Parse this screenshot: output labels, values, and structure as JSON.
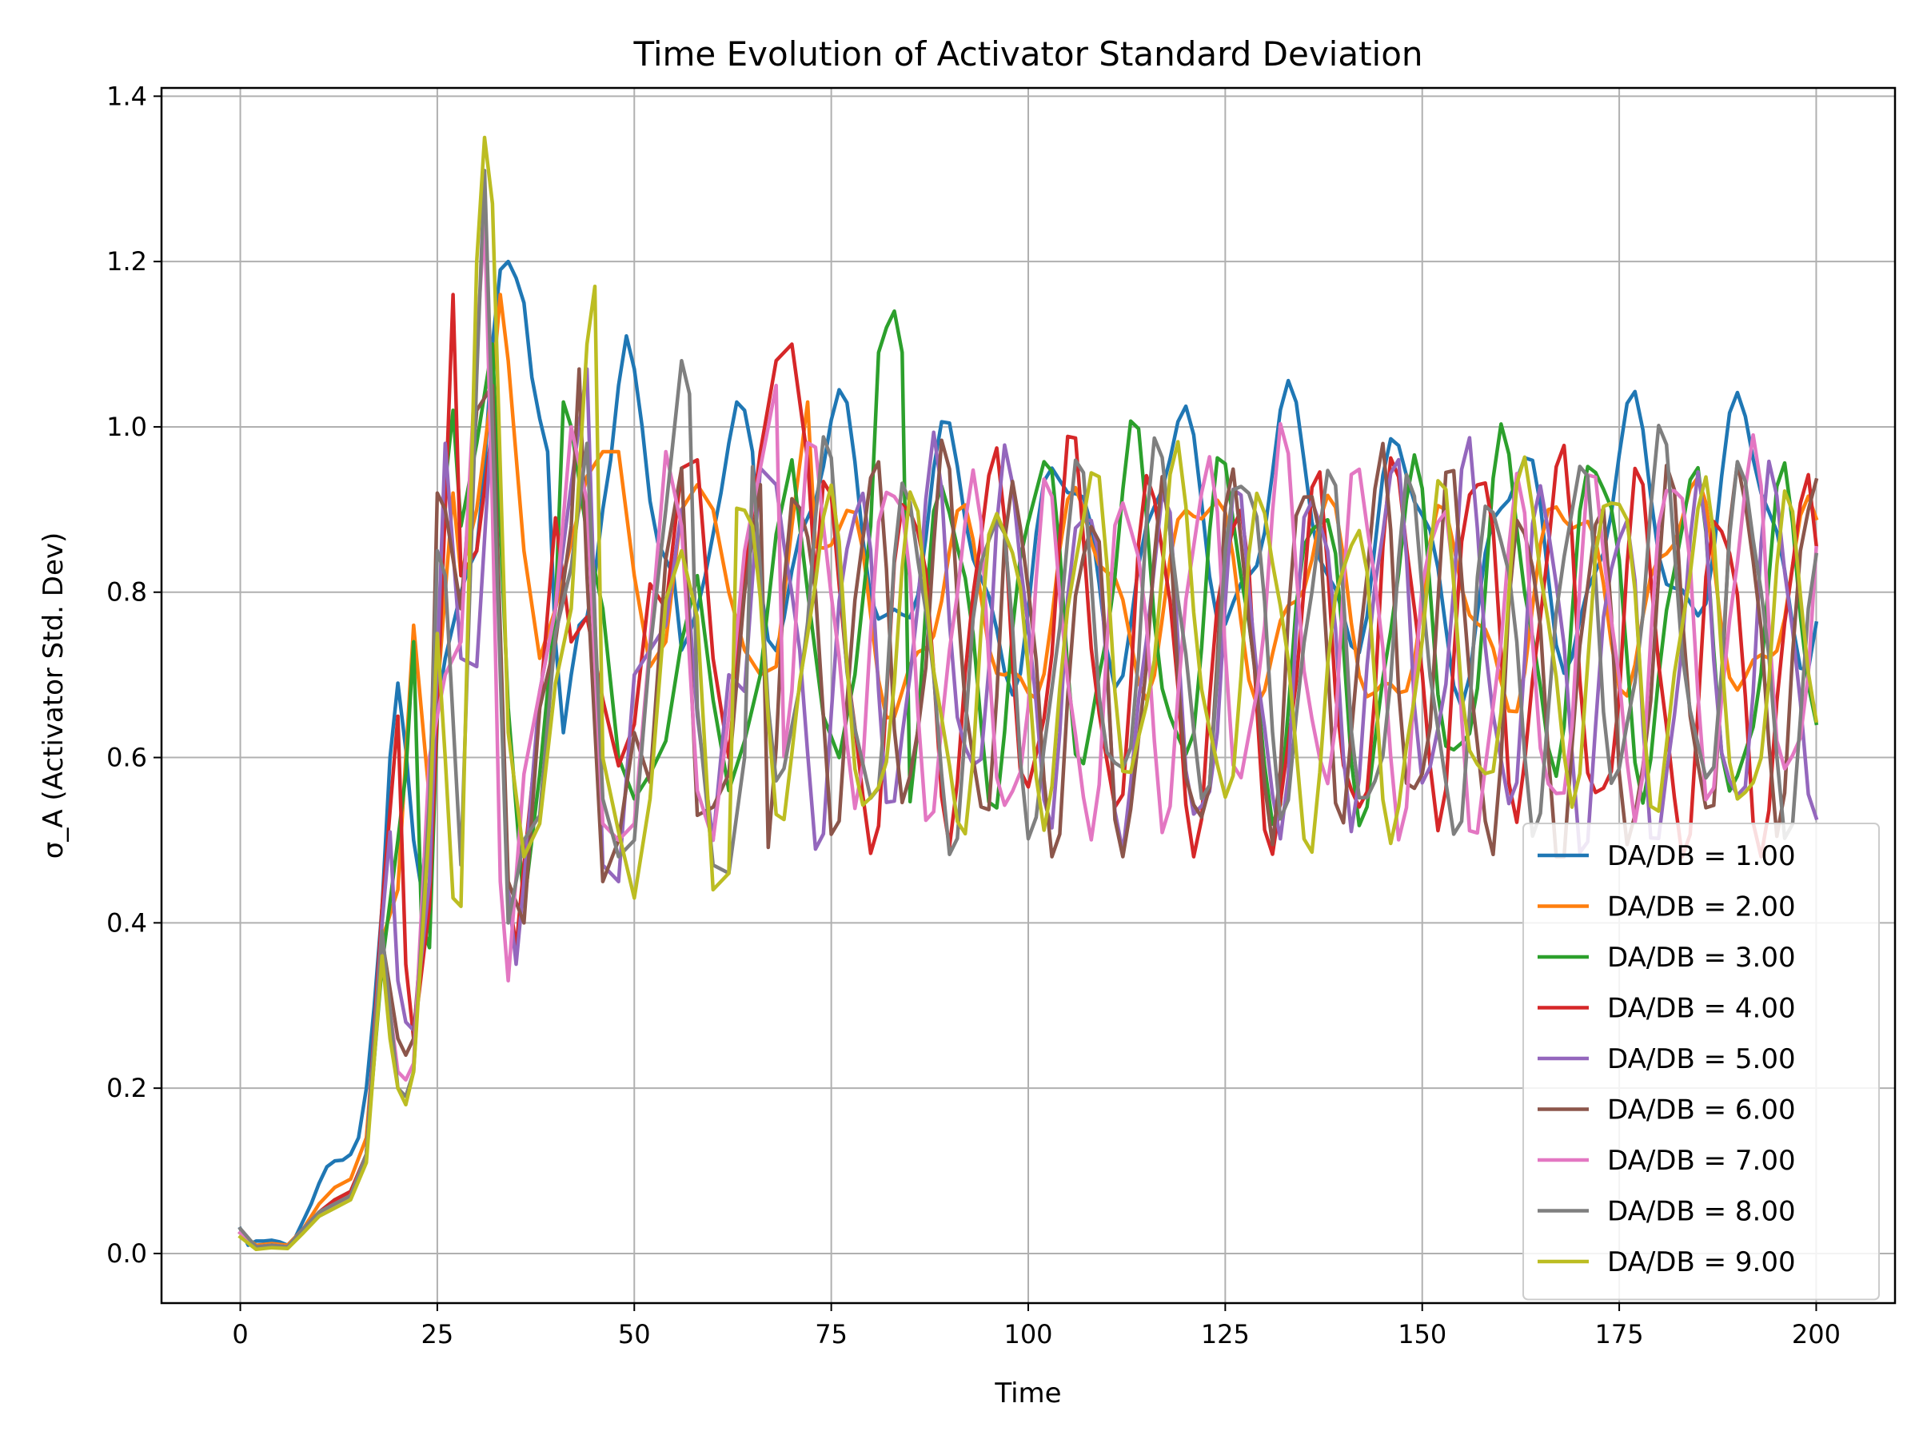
{
  "chart_data": {
    "type": "line",
    "title": "Time Evolution of Activator Standard Deviation",
    "xlabel": "Time",
    "ylabel": "σ_A (Activator Std. Dev)",
    "xlim": [
      -10,
      210
    ],
    "ylim": [
      -0.06,
      1.41
    ],
    "xticks": [
      "0",
      "25",
      "50",
      "75",
      "100",
      "125",
      "150",
      "175",
      "200"
    ],
    "yticks": [
      "0.0",
      "0.2",
      "0.4",
      "0.6",
      "0.8",
      "1.0",
      "1.2",
      "1.4"
    ],
    "grid": true,
    "legend_position": "lower-right",
    "series": [
      {
        "name": "DA/DB = 1.00",
        "color": "#1f77b4",
        "phase": 0.0,
        "period": 14.4,
        "amp": 0.13,
        "base": 0.86,
        "x": [
          0,
          1,
          2,
          3,
          4,
          5,
          6,
          7,
          8,
          9,
          10,
          11,
          12,
          13,
          14,
          15,
          16,
          17,
          18,
          19,
          20,
          21,
          22,
          23,
          24,
          25,
          26,
          27,
          28,
          29,
          30,
          31,
          32,
          33,
          34,
          35,
          36,
          37,
          38,
          39,
          40,
          41,
          42,
          43,
          44,
          45,
          46,
          47,
          48,
          49,
          50,
          51,
          52,
          53,
          54,
          55,
          56,
          57,
          58,
          59,
          60,
          61,
          62,
          63,
          64,
          65
        ],
        "y": [
          0.03,
          0.01,
          0.015,
          0.015,
          0.016,
          0.014,
          0.01,
          0.02,
          0.04,
          0.06,
          0.085,
          0.105,
          0.112,
          0.113,
          0.12,
          0.14,
          0.2,
          0.3,
          0.42,
          0.6,
          0.69,
          0.61,
          0.5,
          0.44,
          0.55,
          0.66,
          0.72,
          0.76,
          0.8,
          0.83,
          0.85,
          0.95,
          1.1,
          1.19,
          1.2,
          1.18,
          1.15,
          1.06,
          1.01,
          0.97,
          0.74,
          0.63,
          0.7,
          0.76,
          0.77,
          0.82,
          0.9,
          0.96,
          1.05,
          1.11,
          1.07,
          1.0,
          0.91,
          0.86,
          0.84,
          0.82,
          0.73,
          0.75,
          0.78,
          0.82,
          0.87,
          0.92,
          0.98,
          1.03,
          1.02,
          0.97
        ]
      },
      {
        "name": "DA/DB = 2.00",
        "color": "#ff7f0e",
        "phase": 2.0,
        "period": 15.4,
        "amp": 0.11,
        "base": 0.79,
        "x": [
          0,
          2,
          4,
          6,
          8,
          10,
          12,
          14,
          16,
          18,
          20,
          21,
          22,
          24,
          26,
          27,
          28,
          30,
          32,
          33,
          34,
          36,
          38,
          40,
          42,
          44,
          46,
          48,
          50,
          52,
          54,
          56,
          58,
          60,
          62,
          64,
          66,
          68,
          70,
          72
        ],
        "y": [
          0.025,
          0.01,
          0.012,
          0.01,
          0.03,
          0.06,
          0.08,
          0.09,
          0.14,
          0.38,
          0.44,
          0.6,
          0.76,
          0.55,
          0.8,
          0.92,
          0.82,
          0.9,
          1.05,
          1.16,
          1.08,
          0.85,
          0.72,
          0.78,
          0.86,
          0.94,
          0.97,
          0.97,
          0.82,
          0.71,
          0.74,
          0.9,
          0.93,
          0.9,
          0.8,
          0.73,
          0.7,
          0.71,
          0.88,
          1.03
        ]
      },
      {
        "name": "DA/DB = 3.00",
        "color": "#2ca02c",
        "phase": 4.1,
        "period": 11.8,
        "amp": 0.19,
        "base": 0.76,
        "x": [
          0,
          2,
          4,
          6,
          8,
          10,
          12,
          14,
          16,
          18,
          20,
          21,
          22,
          23,
          24,
          26,
          27,
          28,
          30,
          32,
          34,
          36,
          38,
          40,
          41,
          42,
          44,
          46,
          48,
          50,
          52,
          54,
          56,
          58,
          60,
          62,
          64,
          66,
          68,
          70,
          72,
          74,
          76,
          78,
          80,
          81,
          82,
          83,
          84
        ],
        "y": [
          0.025,
          0.008,
          0.01,
          0.008,
          0.03,
          0.05,
          0.065,
          0.075,
          0.12,
          0.35,
          0.5,
          0.58,
          0.74,
          0.4,
          0.37,
          0.93,
          1.02,
          0.88,
          0.98,
          1.1,
          0.66,
          0.42,
          0.58,
          0.78,
          1.03,
          1.0,
          0.87,
          0.78,
          0.6,
          0.55,
          0.58,
          0.62,
          0.74,
          0.82,
          0.67,
          0.56,
          0.62,
          0.7,
          0.87,
          0.96,
          0.8,
          0.65,
          0.6,
          0.7,
          0.88,
          1.09,
          1.12,
          1.14,
          1.09
        ]
      },
      {
        "name": "DA/DB = 4.00",
        "color": "#d62728",
        "phase": 6.3,
        "period": 10.3,
        "amp": 0.21,
        "base": 0.73,
        "x": [
          0,
          2,
          4,
          6,
          8,
          10,
          12,
          14,
          16,
          18,
          20,
          21,
          22,
          24,
          26,
          27,
          28,
          30,
          32,
          34,
          35,
          36,
          38,
          40,
          42,
          44,
          46,
          48,
          50,
          52,
          54,
          56,
          58,
          60,
          62,
          64,
          66,
          68,
          70,
          72
        ],
        "y": [
          0.025,
          0.008,
          0.01,
          0.008,
          0.03,
          0.05,
          0.065,
          0.075,
          0.12,
          0.42,
          0.65,
          0.35,
          0.26,
          0.42,
          0.9,
          1.16,
          0.82,
          0.85,
          1.0,
          0.44,
          0.37,
          0.47,
          0.66,
          0.89,
          0.74,
          0.77,
          0.67,
          0.59,
          0.64,
          0.81,
          0.78,
          0.95,
          0.96,
          0.72,
          0.6,
          0.82,
          0.97,
          1.08,
          1.1,
          0.96
        ]
      },
      {
        "name": "DA/DB = 5.00",
        "color": "#9467bd",
        "phase": 1.2,
        "period": 9.7,
        "amp": 0.2,
        "base": 0.73,
        "x": [
          0,
          2,
          4,
          6,
          8,
          10,
          12,
          14,
          16,
          18,
          19,
          20,
          21,
          22,
          24,
          26,
          28,
          30,
          32,
          34,
          35,
          36,
          38,
          40,
          42,
          44,
          46,
          48,
          50,
          52,
          54,
          56,
          58,
          60,
          62,
          64,
          66,
          68
        ],
        "y": [
          0.025,
          0.008,
          0.01,
          0.008,
          0.03,
          0.05,
          0.06,
          0.07,
          0.12,
          0.4,
          0.51,
          0.33,
          0.28,
          0.27,
          0.45,
          0.98,
          0.72,
          0.71,
          1.02,
          0.44,
          0.35,
          0.45,
          0.68,
          0.78,
          0.93,
          1.07,
          0.47,
          0.45,
          0.7,
          0.73,
          0.76,
          0.9,
          0.65,
          0.5,
          0.7,
          0.68,
          0.95,
          0.93
        ]
      },
      {
        "name": "DA/DB = 6.00",
        "color": "#8c564b",
        "phase": 3.4,
        "period": 9.2,
        "amp": 0.21,
        "base": 0.72,
        "x": [
          0,
          2,
          4,
          6,
          8,
          10,
          12,
          14,
          16,
          18,
          20,
          21,
          22,
          24,
          25,
          26,
          28,
          30,
          32,
          34,
          36,
          38,
          40,
          42,
          43,
          44,
          46,
          48,
          50,
          52,
          54,
          56,
          58,
          60,
          62,
          64,
          66
        ],
        "y": [
          0.025,
          0.008,
          0.01,
          0.008,
          0.03,
          0.05,
          0.06,
          0.07,
          0.12,
          0.38,
          0.26,
          0.24,
          0.26,
          0.52,
          0.92,
          0.9,
          0.78,
          1.02,
          1.05,
          0.45,
          0.4,
          0.66,
          0.74,
          0.88,
          1.07,
          0.82,
          0.45,
          0.5,
          0.63,
          0.57,
          0.84,
          0.95,
          0.53,
          0.54,
          0.58,
          0.8,
          0.93
        ]
      },
      {
        "name": "DA/DB = 7.00",
        "color": "#e377c2",
        "phase": 5.6,
        "period": 9.9,
        "amp": 0.2,
        "base": 0.74,
        "x": [
          0,
          2,
          4,
          6,
          8,
          10,
          12,
          14,
          16,
          18,
          20,
          21,
          22,
          24,
          26,
          28,
          30,
          31,
          32,
          33,
          34,
          36,
          38,
          40,
          42,
          44,
          46,
          48,
          50,
          52,
          54,
          56,
          58,
          60,
          62,
          64,
          66,
          68
        ],
        "y": [
          0.025,
          0.008,
          0.01,
          0.008,
          0.03,
          0.05,
          0.06,
          0.07,
          0.12,
          0.37,
          0.22,
          0.21,
          0.23,
          0.6,
          0.7,
          0.74,
          1.1,
          1.25,
          0.9,
          0.45,
          0.33,
          0.58,
          0.68,
          0.78,
          1.0,
          0.91,
          0.52,
          0.5,
          0.52,
          0.74,
          0.97,
          0.88,
          0.56,
          0.5,
          0.65,
          0.85,
          0.95,
          1.05
        ]
      },
      {
        "name": "DA/DB = 8.00",
        "color": "#7f7f7f",
        "phase": 7.8,
        "period": 10.6,
        "amp": 0.2,
        "base": 0.74,
        "x": [
          0,
          2,
          4,
          6,
          8,
          10,
          12,
          14,
          16,
          18,
          20,
          21,
          22,
          24,
          25,
          26,
          28,
          30,
          31,
          32,
          34,
          36,
          38,
          40,
          42,
          44,
          46,
          48,
          50,
          52,
          54,
          56,
          57,
          58,
          60,
          62,
          64
        ],
        "y": [
          0.03,
          0.008,
          0.01,
          0.008,
          0.03,
          0.05,
          0.06,
          0.07,
          0.12,
          0.39,
          0.2,
          0.19,
          0.22,
          0.55,
          0.85,
          0.82,
          0.47,
          1.06,
          1.31,
          1.0,
          0.4,
          0.5,
          0.53,
          0.75,
          0.83,
          0.98,
          0.55,
          0.48,
          0.5,
          0.73,
          0.9,
          1.08,
          1.04,
          0.66,
          0.47,
          0.46,
          0.6
        ]
      },
      {
        "name": "DA/DB = 9.00",
        "color": "#bcbd22",
        "phase": 9.7,
        "period": 11.1,
        "amp": 0.19,
        "base": 0.73,
        "x": [
          0,
          2,
          4,
          6,
          8,
          10,
          12,
          14,
          16,
          18,
          19,
          20,
          21,
          22,
          24,
          25,
          26,
          27,
          28,
          30,
          31,
          32,
          33,
          34,
          36,
          38,
          40,
          42,
          44,
          45,
          46,
          48,
          50,
          52,
          54,
          56,
          58,
          60,
          62
        ],
        "y": [
          0.02,
          0.005,
          0.007,
          0.006,
          0.025,
          0.045,
          0.055,
          0.065,
          0.11,
          0.36,
          0.26,
          0.2,
          0.18,
          0.22,
          0.52,
          0.75,
          0.6,
          0.43,
          0.42,
          1.2,
          1.35,
          1.27,
          0.95,
          0.63,
          0.48,
          0.52,
          0.69,
          0.78,
          1.1,
          1.17,
          0.6,
          0.51,
          0.43,
          0.55,
          0.79,
          0.85,
          0.77,
          0.44,
          0.46
        ]
      }
    ]
  }
}
